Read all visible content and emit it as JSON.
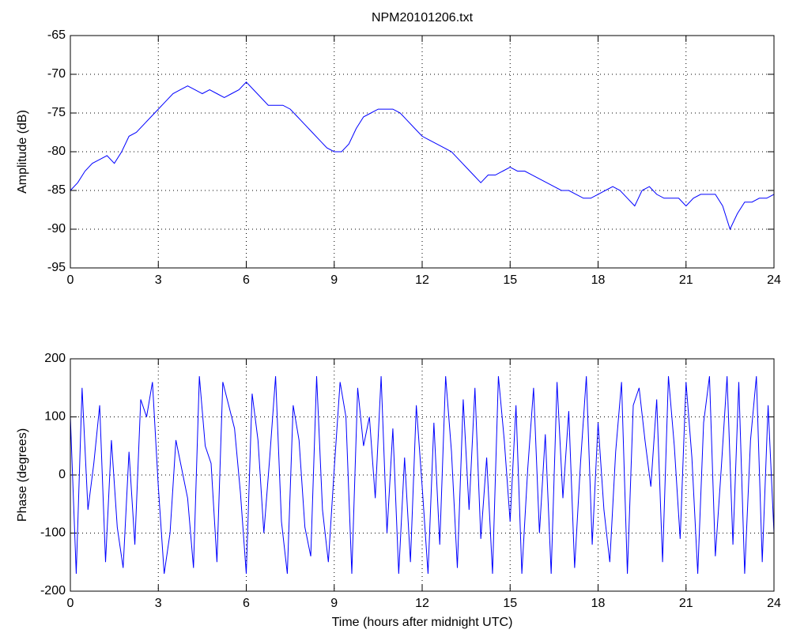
{
  "chart_data": [
    {
      "type": "line",
      "title": "NPM20101206.txt",
      "y_label": "Amplitude (dB)",
      "xlim": [
        0,
        24
      ],
      "xticks": [
        0,
        3,
        6,
        9,
        12,
        15,
        18,
        21,
        24
      ],
      "ylim": [
        -95,
        -65
      ],
      "yticks": [
        -95,
        -90,
        -85,
        -80,
        -75,
        -70,
        -65
      ],
      "grid": true,
      "x": [
        0,
        0.25,
        0.5,
        0.75,
        1,
        1.25,
        1.5,
        1.75,
        2,
        2.25,
        2.5,
        2.75,
        3,
        3.25,
        3.5,
        3.75,
        4,
        4.25,
        4.5,
        4.75,
        5,
        5.25,
        5.5,
        5.75,
        6,
        6.25,
        6.5,
        6.75,
        7,
        7.25,
        7.5,
        7.75,
        8,
        8.25,
        8.5,
        8.75,
        9,
        9.25,
        9.5,
        9.75,
        10,
        10.25,
        10.5,
        10.75,
        11,
        11.25,
        11.5,
        11.75,
        12,
        12.25,
        12.5,
        12.75,
        13,
        13.25,
        13.5,
        13.75,
        14,
        14.25,
        14.5,
        14.75,
        15,
        15.25,
        15.5,
        15.75,
        16,
        16.25,
        16.5,
        16.75,
        17,
        17.25,
        17.5,
        17.75,
        18,
        18.25,
        18.5,
        18.75,
        19,
        19.25,
        19.5,
        19.75,
        20,
        20.25,
        20.5,
        20.75,
        21,
        21.25,
        21.5,
        21.75,
        22,
        22.25,
        22.5,
        22.75,
        23,
        23.25,
        23.5,
        23.75,
        24
      ],
      "series": [
        {
          "color": "#0000ff",
          "values": [
            -85,
            -84,
            -82.5,
            -81.5,
            -81,
            -80.5,
            -81.5,
            -80,
            -78,
            -77.5,
            -76.5,
            -75.5,
            -74.5,
            -73.5,
            -72.5,
            -72,
            -71.5,
            -72,
            -72.5,
            -72,
            -72.5,
            -73,
            -72.5,
            -72,
            -71,
            -72,
            -73,
            -74,
            -74,
            -74,
            -74.5,
            -75.5,
            -76.5,
            -77.5,
            -78.5,
            -79.5,
            -80,
            -80,
            -79,
            -77,
            -75.5,
            -75,
            -74.5,
            -74.5,
            -74.5,
            -75,
            -76,
            -77,
            -78,
            -78.5,
            -79,
            -79.5,
            -80,
            -81,
            -82,
            -83,
            -84,
            -83,
            -83,
            -82.5,
            -82,
            -82.5,
            -82.5,
            -83,
            -83.5,
            -84,
            -84.5,
            -85,
            -85,
            -85.5,
            -86,
            -86,
            -85.5,
            -85,
            -84.5,
            -85,
            -86,
            -87,
            -85,
            -84.5,
            -85.5,
            -86,
            -86,
            -86,
            -87,
            -86,
            -85.5,
            -85.5,
            -85.5,
            -87,
            -90,
            -88,
            -86.5,
            -86.5,
            -86,
            -86,
            -85.5
          ]
        }
      ]
    },
    {
      "type": "line",
      "y_label": "Phase (degrees)",
      "x_label": "Time (hours after midnight UTC)",
      "xlim": [
        0,
        24
      ],
      "xticks": [
        0,
        3,
        6,
        9,
        12,
        15,
        18,
        21,
        24
      ],
      "ylim": [
        -200,
        200
      ],
      "yticks": [
        -200,
        -100,
        0,
        100,
        200
      ],
      "grid": true,
      "x": [
        0,
        0.2,
        0.4,
        0.6,
        0.8,
        1,
        1.2,
        1.4,
        1.6,
        1.8,
        2,
        2.2,
        2.4,
        2.6,
        2.8,
        3,
        3.2,
        3.4,
        3.6,
        3.8,
        4,
        4.2,
        4.4,
        4.6,
        4.8,
        5,
        5.2,
        5.4,
        5.6,
        5.8,
        6,
        6.2,
        6.4,
        6.6,
        6.8,
        7,
        7.2,
        7.4,
        7.6,
        7.8,
        8,
        8.2,
        8.4,
        8.6,
        8.8,
        9,
        9.2,
        9.4,
        9.6,
        9.8,
        10,
        10.2,
        10.4,
        10.6,
        10.8,
        11,
        11.2,
        11.4,
        11.6,
        11.8,
        12,
        12.2,
        12.4,
        12.6,
        12.8,
        13,
        13.2,
        13.4,
        13.6,
        13.8,
        14,
        14.2,
        14.4,
        14.6,
        14.8,
        15,
        15.2,
        15.4,
        15.6,
        15.8,
        16,
        16.2,
        16.4,
        16.6,
        16.8,
        17,
        17.2,
        17.4,
        17.6,
        17.8,
        18,
        18.2,
        18.4,
        18.6,
        18.8,
        19,
        19.2,
        19.4,
        19.6,
        19.8,
        20,
        20.2,
        20.4,
        20.6,
        20.8,
        21,
        21.2,
        21.4,
        21.6,
        21.8,
        22,
        22.2,
        22.4,
        22.6,
        22.8,
        23,
        23.2,
        23.4,
        23.6,
        23.8,
        24
      ],
      "series": [
        {
          "color": "#0000ff",
          "values": [
            100,
            -170,
            150,
            -60,
            20,
            120,
            -150,
            60,
            -90,
            -160,
            40,
            -120,
            130,
            100,
            160,
            -20,
            -170,
            -100,
            60,
            10,
            -40,
            -160,
            170,
            50,
            20,
            -150,
            160,
            120,
            80,
            -30,
            -170,
            140,
            60,
            -100,
            30,
            170,
            -80,
            -170,
            120,
            60,
            -90,
            -140,
            170,
            -60,
            -150,
            10,
            160,
            100,
            -170,
            150,
            50,
            100,
            -40,
            170,
            -100,
            80,
            -170,
            30,
            -150,
            120,
            -20,
            -170,
            90,
            -120,
            170,
            40,
            -160,
            130,
            -60,
            150,
            -110,
            30,
            -170,
            170,
            60,
            -80,
            120,
            -170,
            10,
            150,
            -100,
            70,
            -170,
            160,
            -40,
            110,
            -160,
            20,
            170,
            -120,
            90,
            -60,
            -150,
            40,
            160,
            -170,
            120,
            150,
            60,
            -20,
            130,
            -150,
            170,
            50,
            -110,
            160,
            30,
            -170,
            90,
            170,
            -140,
            10,
            170,
            -120,
            160,
            -170,
            60,
            170,
            -150,
            120,
            -100
          ]
        }
      ]
    }
  ]
}
